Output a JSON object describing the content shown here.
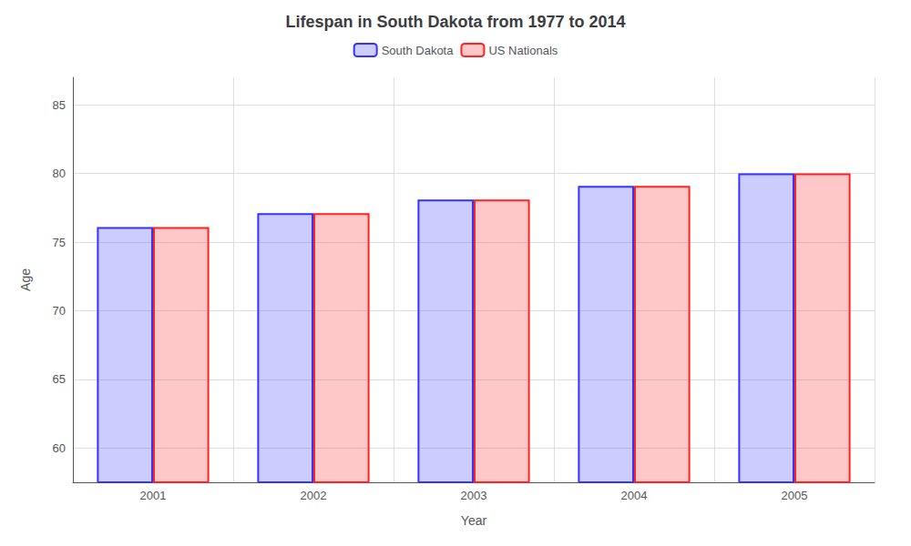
{
  "chart_data": {
    "type": "bar",
    "title": "Lifespan in South Dakota from 1977 to 2014",
    "xlabel": "Year",
    "ylabel": "Age",
    "categories": [
      "2001",
      "2002",
      "2003",
      "2004",
      "2005"
    ],
    "series": [
      {
        "name": "South Dakota",
        "color": "#3333ff",
        "values": [
          76.1,
          77.1,
          78.1,
          79.1,
          80.0
        ]
      },
      {
        "name": "US Nationals",
        "color": "#ff2222",
        "values": [
          76.1,
          77.1,
          78.1,
          79.1,
          80.0
        ]
      }
    ],
    "ylim": [
      57.5,
      87
    ],
    "yticks": [
      60,
      65,
      70,
      75,
      80,
      85
    ],
    "grid": true,
    "legend": "top"
  }
}
